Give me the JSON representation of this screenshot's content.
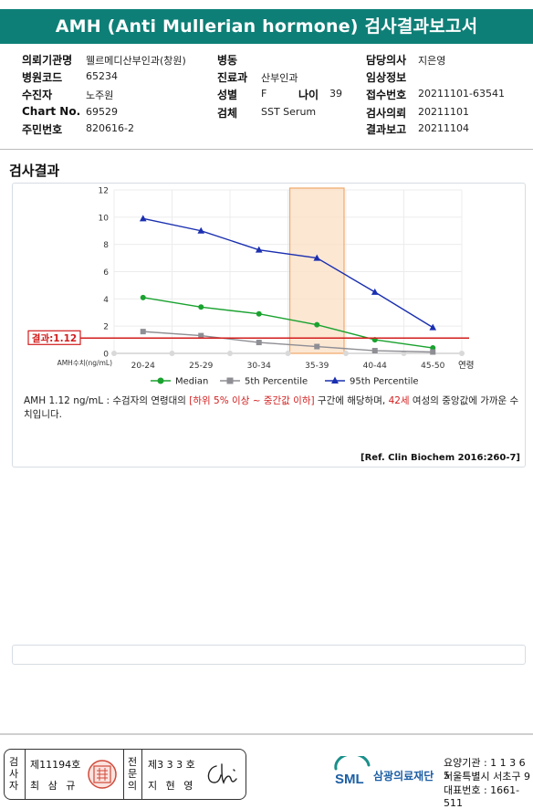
{
  "title": "AMH (Anti Mullerian hormone) 검사결과보고서",
  "info": {
    "institution_label": "의뢰기관명",
    "institution": "웰르메디산부인과(창원)",
    "code_label": "병원코드",
    "code": "65234",
    "patient_label": "수진자",
    "patient": "노주원",
    "chart_label": "Chart No.",
    "chart": "69529",
    "id_label": "주민번호",
    "id": "820616-2",
    "ward_label": "병동",
    "ward": "",
    "dept_label": "진료과",
    "dept": "산부인과",
    "sex_label": "성별",
    "sex": "F",
    "age_label": "나이",
    "age": "39",
    "specimen_label": "검체",
    "specimen": "SST Serum",
    "doctor_label": "담당의사",
    "doctor": "지은영",
    "clinical_label": "임상정보",
    "clinical": "",
    "receipt_label": "접수번호",
    "receipt": "20211101-63541",
    "request_label": "검사의뢰",
    "request": "20211101",
    "report_label": "결과보고",
    "report": "20211104"
  },
  "section_title": "검사결과",
  "chart_data": {
    "type": "line",
    "categories": [
      "20-24",
      "25-29",
      "30-34",
      "35-39",
      "40-44",
      "45-50"
    ],
    "x_unit_label": "연령",
    "y_axis_label": "AMH수치(ng/mL)",
    "ylim": [
      0,
      12
    ],
    "yticks": [
      0,
      2,
      4,
      6,
      8,
      10,
      12
    ],
    "series": [
      {
        "name": "Median",
        "color": "#1aa22f",
        "marker": "circle",
        "values": [
          4.1,
          3.4,
          2.9,
          2.1,
          1.0,
          0.4
        ]
      },
      {
        "name": "5th Percentile",
        "color": "#8e8e94",
        "marker": "square",
        "values": [
          1.6,
          1.3,
          0.8,
          0.5,
          0.2,
          0.1
        ]
      },
      {
        "name": "95th Percentile",
        "color": "#1a2fb0",
        "marker": "triangle",
        "values": [
          9.9,
          9.0,
          7.6,
          7.0,
          4.5,
          1.9
        ]
      }
    ],
    "highlight_category": "35-39",
    "result_value": 1.12,
    "result_label": "결과:1.12",
    "result_color": "#d21d1d"
  },
  "description": {
    "part1": "AMH  1.12 ng/mL : 수검자의 연령대의 ",
    "part2": "[하위 5% 이상 ~ 중간값 이하]",
    "part3": " 구간에 해당하며, ",
    "part4": "42세",
    "part5": " 여성의 중앙값에 가까운 수치입니다."
  },
  "reference": "[Ref. Clin Biochem 2016:260-7]",
  "footer": {
    "v1": [
      "검",
      "사",
      "자"
    ],
    "no1": "제11194호",
    "name1": "최 삼 규",
    "v2": [
      "전",
      "문",
      "의"
    ],
    "no2": "제3 3 3 호",
    "name2": "지 현 영",
    "logo_sml": "SML",
    "logo_name": "삼광의료재단",
    "addr1": "요양기관 : 1 1 3 6 5",
    "addr2": "서울특별시 서초구 9",
    "addr3": "대표번호 : 1661-511"
  }
}
